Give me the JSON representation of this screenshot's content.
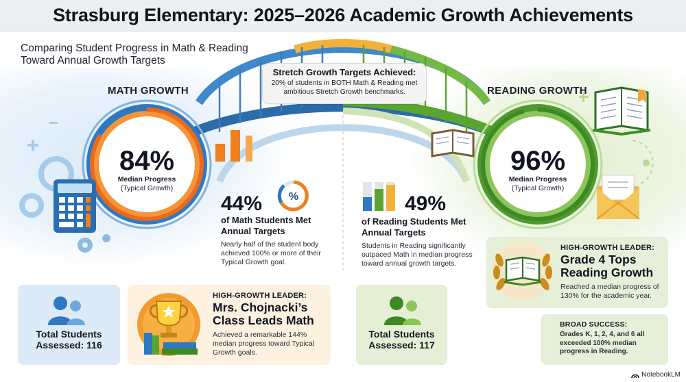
{
  "title": "Strasburg Elementary: 2025–2026 Academic Growth Achievements",
  "subtitle": "Comparing Student Progress in Math & Reading Toward Annual Growth Targets",
  "stretch": {
    "title": "Stretch Growth Targets Achieved:",
    "description": "20% of students in BOTH Math & Reading met ambitious Stretch Growth benchmarks."
  },
  "math": {
    "heading": "MATH GROWTH",
    "median": "84%",
    "median_label": "Median Progress",
    "median_sublabel": "(Typical Growth)",
    "met_percent": "44%",
    "met_label": "of Math Students Met Annual Targets",
    "met_description": "Nearly half of the student body achieved 100% or more of their Typical Growth goal.",
    "percent_icon": "%",
    "total_label": "Total Students Assessed: 116",
    "leader": {
      "kicker": "HIGH-GROWTH LEADER:",
      "title": "Mrs. Chojnacki’s Class Leads Math",
      "description": "Achieved a remarkable 144% median progress toward Typical Growth goals."
    }
  },
  "reading": {
    "heading": "READING GROWTH",
    "median": "96%",
    "median_label": "Median Progress",
    "median_sublabel": "(Typical Growth)",
    "met_percent": "49%",
    "met_label": "of Reading Students Met Annual Targets",
    "met_description": "Students in Reading significantly outpaced Math in median progress toward annual growth targets.",
    "total_label": "Total Students Assessed: 117",
    "leader": {
      "kicker": "HIGH-GROWTH LEADER:",
      "title": "Grade 4 Tops Reading Growth",
      "description": "Reached a median progress of 130% for the academic year."
    },
    "broad": {
      "kicker": "BROAD SUCCESS:",
      "description": "Grades K, 1, 2, 4, and 6 all exceeded 100% median progress in Reading."
    }
  },
  "brand": "NotebookLM",
  "colors": {
    "math_blue": "#1f6fb8",
    "math_orange": "#f07f1c",
    "reading_green": "#5aa531",
    "teacher_card": "#fdf1df",
    "reading_card": "#e6f0d8",
    "math_card": "#dcebf7"
  },
  "icons": [
    "calculator-icon",
    "gear-icon",
    "percent-icon",
    "bar-chart-icon",
    "open-book-icon",
    "envelope-icon",
    "trophy-icon",
    "users-icon",
    "laurel-book-icon"
  ]
}
